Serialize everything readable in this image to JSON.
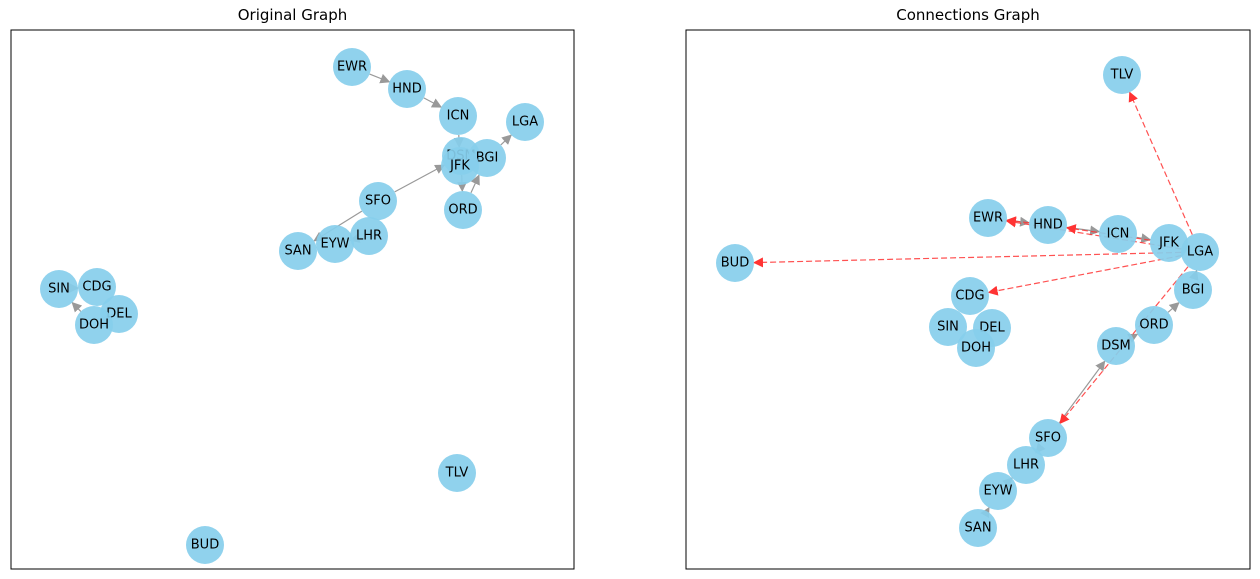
{
  "figure": {
    "left_title": "Original Graph",
    "right_title": "Connections Graph"
  },
  "colors": {
    "node_fill": "#87CEEB",
    "edge_original": "#999999",
    "edge_connection": "#ff3333",
    "frame": "#000000"
  },
  "chart_data": [
    {
      "type": "network",
      "title": "Original Graph",
      "nodes": [
        "EWR",
        "HND",
        "ICN",
        "LGA",
        "DSM",
        "BGI",
        "JFK",
        "ORD",
        "SFO",
        "SAN",
        "EYW",
        "LHR",
        "SIN",
        "CDG",
        "DEL",
        "DOH",
        "TLV",
        "BUD"
      ],
      "edges": [
        [
          "EWR",
          "HND"
        ],
        [
          "HND",
          "ICN"
        ],
        [
          "ICN",
          "JFK"
        ],
        [
          "DSM",
          "ORD"
        ],
        [
          "ORD",
          "BGI"
        ],
        [
          "BGI",
          "LGA"
        ],
        [
          "SFO",
          "DSM"
        ],
        [
          "SFO",
          "SAN"
        ],
        [
          "EYW",
          "LHR"
        ],
        [
          "DEL",
          "DOH"
        ],
        [
          "DOH",
          "SIN"
        ],
        [
          "SIN",
          "CDG"
        ]
      ]
    },
    {
      "type": "network",
      "title": "Connections Graph",
      "nodes": [
        "TLV",
        "EWR",
        "HND",
        "ICN",
        "JFK",
        "LGA",
        "BUD",
        "CDG",
        "BGI",
        "SIN",
        "DEL",
        "DOH",
        "ORD",
        "DSM",
        "SFO",
        "LHR",
        "EYW",
        "SAN"
      ],
      "edges": [
        [
          "EWR",
          "HND"
        ],
        [
          "HND",
          "ICN"
        ],
        [
          "ICN",
          "JFK"
        ],
        [
          "DSM",
          "ORD"
        ],
        [
          "ORD",
          "BGI"
        ],
        [
          "BGI",
          "LGA"
        ],
        [
          "SFO",
          "DSM"
        ],
        [
          "SAN",
          "EYW"
        ],
        [
          "EYW",
          "LHR"
        ],
        [
          "LHR",
          "SFO"
        ]
      ],
      "added_connections": [
        [
          "LGA",
          "TLV"
        ],
        [
          "LGA",
          "BUD"
        ],
        [
          "LGA",
          "CDG"
        ],
        [
          "LGA",
          "EWR"
        ],
        [
          "LGA",
          "SFO"
        ],
        [
          "HND",
          "EWR"
        ],
        [
          "JFK",
          "HND"
        ]
      ]
    }
  ]
}
